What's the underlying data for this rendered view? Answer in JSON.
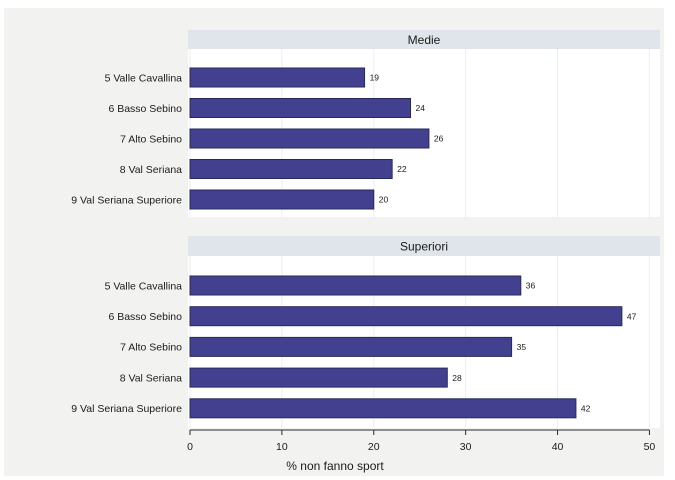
{
  "colors": {
    "background": "#ffffff",
    "plot_region": "#f2f3f1",
    "panel": "#ffffff",
    "strip": "#dfe5ea",
    "bar_fill": "#43418f",
    "bar_stroke": "#262a5b",
    "grid": "#eceeef"
  },
  "chart_data": {
    "type": "bar",
    "orientation": "horizontal",
    "xlabel": "% non fanno sport",
    "xlim": [
      0,
      50
    ],
    "xticks": [
      0,
      10,
      20,
      30,
      40,
      50
    ],
    "grid": true,
    "panels": [
      {
        "title": "Medie",
        "categories": [
          "5 Valle Cavallina",
          "6 Basso Sebino",
          "7 Alto Sebino",
          "8 Val Seriana",
          "9 Val Seriana Superiore"
        ],
        "values": [
          19,
          24,
          26,
          22,
          20
        ],
        "value_labels": [
          "19",
          "24",
          "26",
          "22",
          "20"
        ]
      },
      {
        "title": "Superiori",
        "categories": [
          "5 Valle Cavallina",
          "6 Basso Sebino",
          "7 Alto Sebino",
          "8 Val Seriana",
          "9 Val Seriana Superiore"
        ],
        "values": [
          36,
          47,
          35,
          28,
          42
        ],
        "value_labels": [
          "36",
          "47",
          "35",
          "28",
          "42"
        ]
      }
    ]
  }
}
